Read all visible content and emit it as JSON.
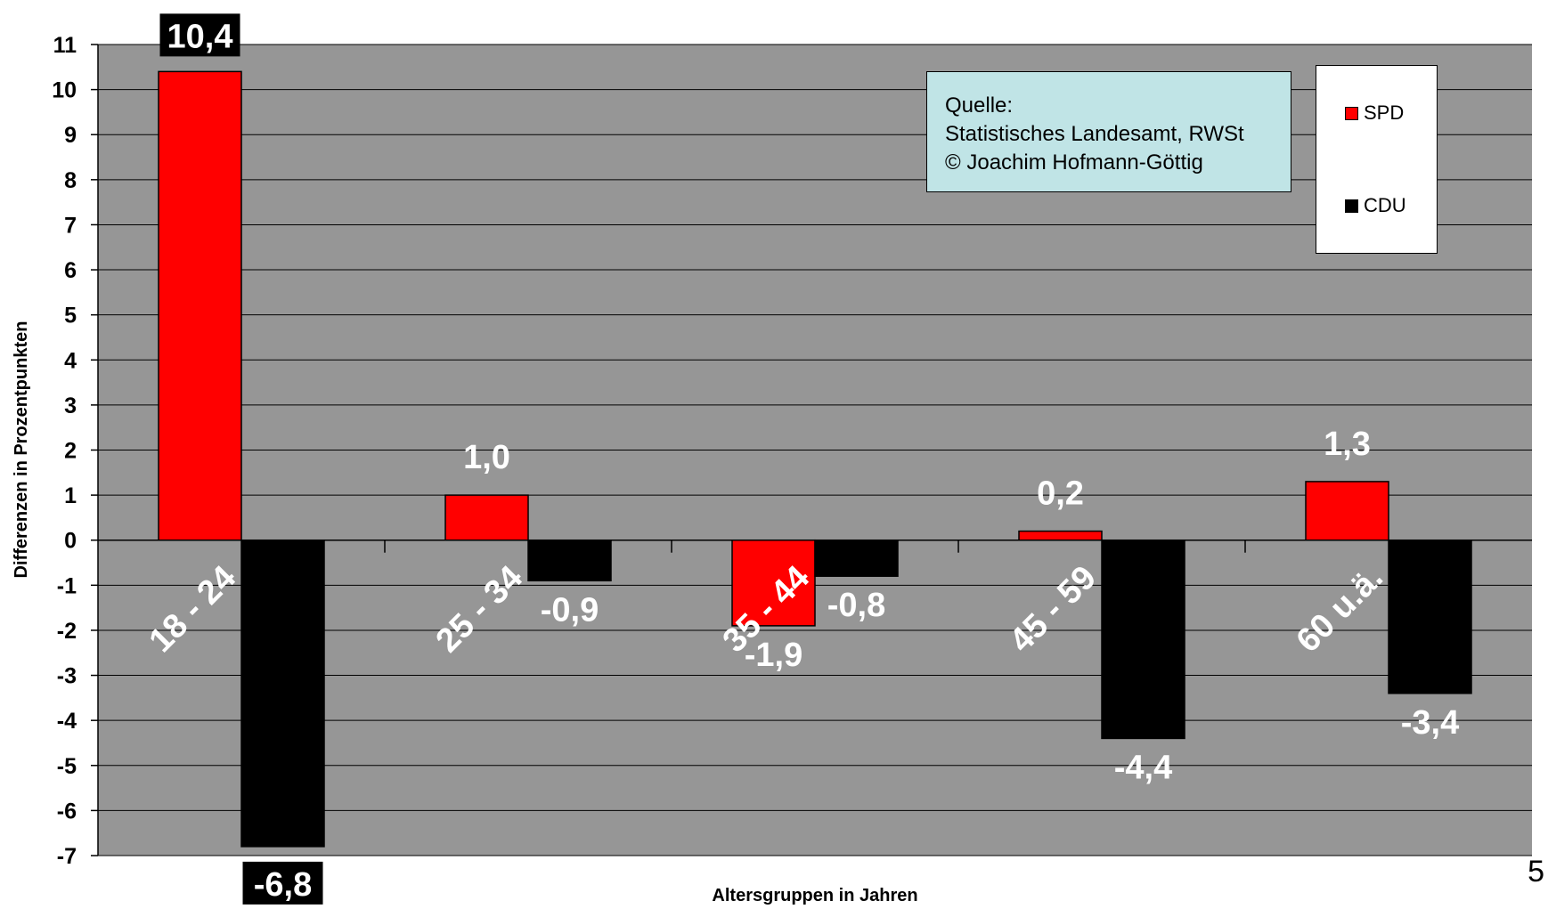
{
  "chart_data": {
    "type": "bar",
    "categories": [
      "18 - 24",
      "25 - 34",
      "35 - 44",
      "45 - 59",
      "60 u.ä."
    ],
    "series": [
      {
        "name": "SPD",
        "values": [
          10.4,
          1.0,
          -1.9,
          0.2,
          1.3
        ],
        "labels": [
          "10,4",
          "1,0",
          "-1,9",
          "0,2",
          "1,3"
        ]
      },
      {
        "name": "CDU",
        "values": [
          -6.8,
          -0.9,
          -0.8,
          -4.4,
          -3.4
        ],
        "labels": [
          "-6,8",
          "-0,9",
          "-0,8",
          "-4,4",
          "-3,4"
        ]
      }
    ],
    "xlabel": "Altersgruppen in Jahren",
    "ylabel": "Differenzen in Prozentpunkten",
    "ylim": [
      -7,
      11
    ],
    "yticks": [
      11,
      10,
      9,
      8,
      7,
      6,
      5,
      4,
      3,
      2,
      1,
      0,
      -1,
      -2,
      -3,
      -4,
      -5,
      -6,
      -7
    ],
    "grid": true,
    "legend_position": "top-right"
  },
  "colors": {
    "plot_background": "#969696",
    "spd": "#ff0000",
    "cdu": "#000000",
    "source_box": "#c0e4e6"
  },
  "source_note": {
    "line1": "Quelle:",
    "line2": "Statistisches Landesamt, RWSt",
    "line3": "© Joachim Hofmann-Göttig"
  },
  "legend": {
    "spd": "SPD",
    "cdu": "CDU"
  },
  "page_number": "5"
}
